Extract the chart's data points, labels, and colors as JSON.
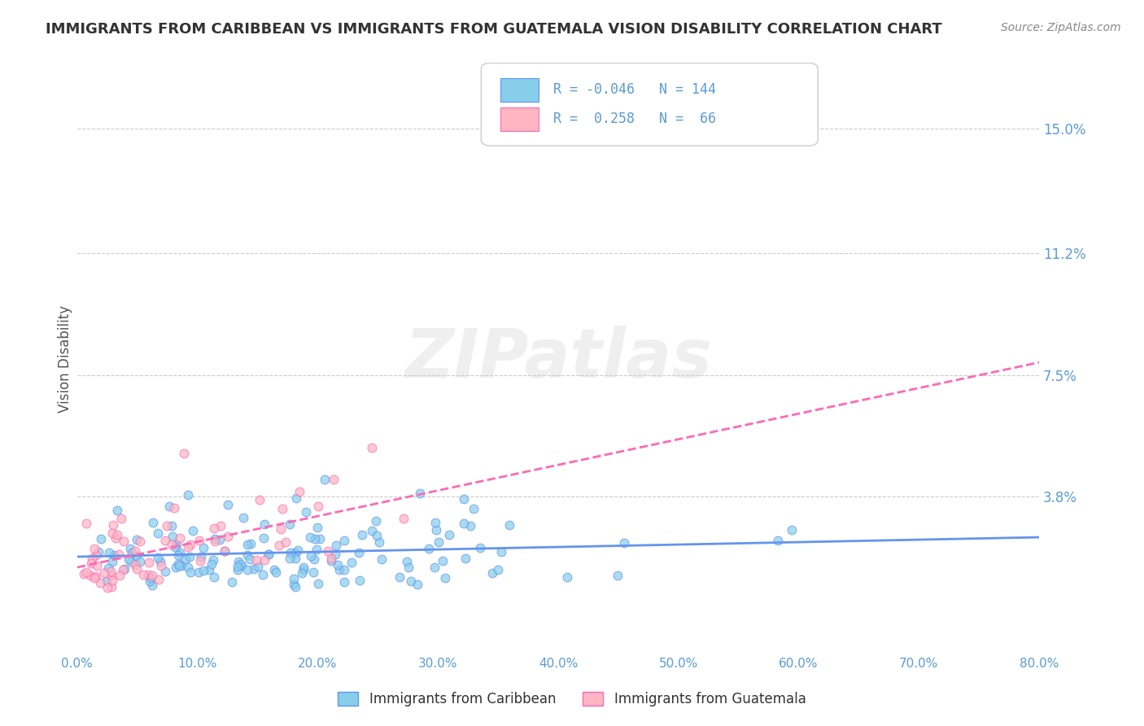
{
  "title": "IMMIGRANTS FROM CARIBBEAN VS IMMIGRANTS FROM GUATEMALA VISION DISABILITY CORRELATION CHART",
  "source": "Source: ZipAtlas.com",
  "xlabel": "",
  "ylabel": "Vision Disability",
  "xlim": [
    0.0,
    0.8
  ],
  "ylim": [
    -0.01,
    0.17
  ],
  "yticks": [
    0.038,
    0.075,
    0.112,
    0.15
  ],
  "ytick_labels": [
    "3.8%",
    "7.5%",
    "11.2%",
    "15.0%"
  ],
  "xticks": [
    0.0,
    0.1,
    0.2,
    0.3,
    0.4,
    0.5,
    0.6,
    0.7,
    0.8
  ],
  "xtick_labels": [
    "0.0%",
    "10.0%",
    "20.0%",
    "30.0%",
    "40.0%",
    "50.0%",
    "60.0%",
    "70.0%",
    "80.0%"
  ],
  "caribbean_color": "#87CEEB",
  "guatemala_color": "#FFB6C1",
  "caribbean_edge": "#6495ED",
  "guatemala_edge": "#FF69B4",
  "trend_caribbean_color": "#6495ED",
  "trend_guatemala_color": "#FF69B4",
  "R_caribbean": -0.046,
  "N_caribbean": 144,
  "R_guatemala": 0.258,
  "N_guatemala": 66,
  "title_color": "#333333",
  "axis_color": "#5B9BD5",
  "watermark": "ZIPatlas",
  "background_color": "#FFFFFF",
  "grid_color": "#CCCCCC",
  "seed_caribbean": 42,
  "seed_guatemala": 99
}
